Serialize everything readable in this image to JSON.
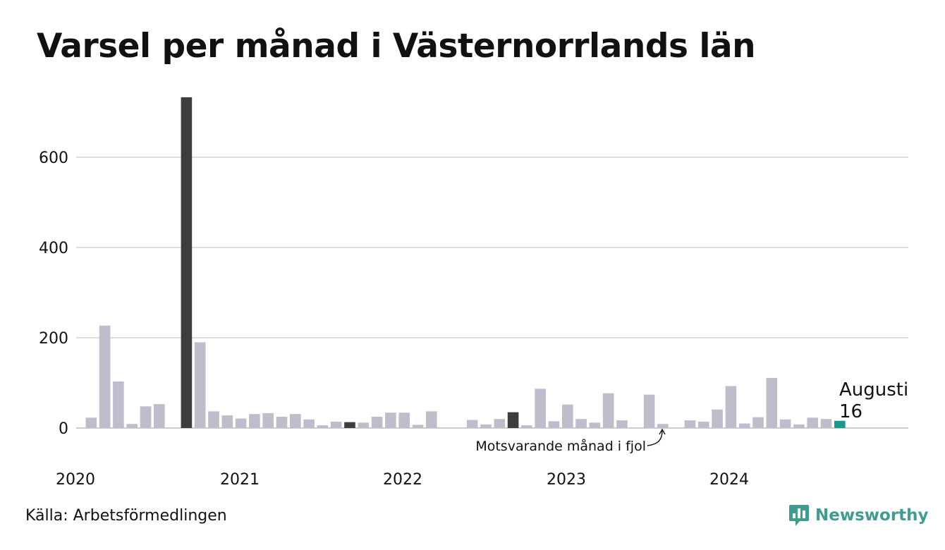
{
  "title": "Varsel per månad i Västernorrlands län",
  "source": "Källa: Arbetsförmedlingen",
  "brand": {
    "name": "Newsworthy",
    "icon": "newsworthy-logo-icon"
  },
  "colors": {
    "bar": "#bfbccb",
    "highlight": "#3d3d3d",
    "current": "#1a9a8e",
    "grid": "#dddddd",
    "axis": "#cccccc",
    "text": "#111111",
    "brand": "#3f9c91"
  },
  "annotations": {
    "current_month": "Augusti",
    "current_value": "16",
    "prior_year": "Motsvarande månad i fjol"
  },
  "chart_data": {
    "type": "bar",
    "title": "Varsel per månad i Västernorrlands län",
    "xlabel": "",
    "ylabel": "",
    "ylim": [
      0,
      750
    ],
    "yticks": [
      0,
      200,
      400,
      600
    ],
    "xtick_labels": [
      "2020",
      "2021",
      "2022",
      "2023",
      "2024"
    ],
    "grid": true,
    "legend": "none",
    "categories": [
      "2020-01",
      "2020-02",
      "2020-03",
      "2020-04",
      "2020-05",
      "2020-06",
      "2020-07",
      "2020-08",
      "2020-09",
      "2020-10",
      "2020-11",
      "2020-12",
      "2021-01",
      "2021-02",
      "2021-03",
      "2021-04",
      "2021-05",
      "2021-06",
      "2021-07",
      "2021-08",
      "2021-09",
      "2021-10",
      "2021-11",
      "2021-12",
      "2022-01",
      "2022-02",
      "2022-03",
      "2022-04",
      "2022-05",
      "2022-06",
      "2022-07",
      "2022-08",
      "2022-09",
      "2022-10",
      "2022-11",
      "2022-12",
      "2023-01",
      "2023-02",
      "2023-03",
      "2023-04",
      "2023-05",
      "2023-06",
      "2023-07",
      "2023-08",
      "2023-09",
      "2023-10",
      "2023-11",
      "2023-12",
      "2024-01",
      "2024-02",
      "2024-03",
      "2024-04",
      "2024-05",
      "2024-06",
      "2024-07",
      "2024-08"
    ],
    "values": [
      23,
      227,
      103,
      9,
      48,
      53,
      0,
      733,
      190,
      37,
      28,
      21,
      31,
      33,
      25,
      31,
      19,
      6,
      14,
      13,
      12,
      25,
      34,
      34,
      7,
      37,
      0,
      0,
      18,
      8,
      20,
      35,
      6,
      87,
      15,
      52,
      20,
      12,
      77,
      17,
      0,
      74,
      9,
      0,
      17,
      14,
      41,
      93,
      10,
      24,
      111,
      19,
      8,
      23,
      20,
      16
    ],
    "highlight_indices": [
      7,
      19,
      31
    ],
    "current_index": 55
  }
}
